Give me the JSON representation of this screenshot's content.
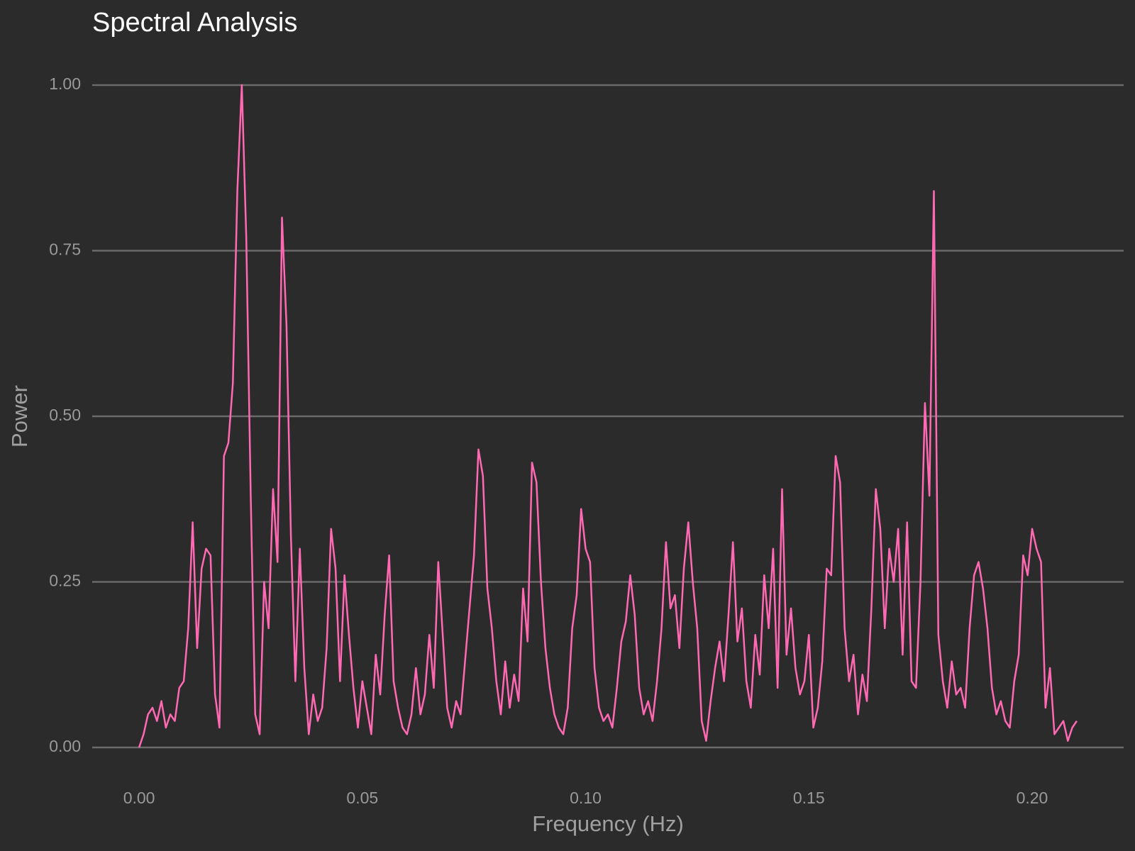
{
  "chart_data": {
    "type": "line",
    "title": "Spectral Analysis",
    "x_label": "Frequency (Hz)",
    "y_label": "Power",
    "color": "#ff69b4",
    "grid": true,
    "xlim": [
      -0.0105,
      0.2205
    ],
    "ylim": [
      -0.046,
      1.046
    ],
    "xticks": [
      {
        "value": 0,
        "label": "0.00"
      },
      {
        "value": 0.05,
        "label": "0.05"
      },
      {
        "value": 0.1,
        "label": "0.10"
      },
      {
        "value": 0.15,
        "label": "0.15"
      },
      {
        "value": 0.2,
        "label": "0.20"
      }
    ],
    "yticks": [
      {
        "value": 0,
        "label": "0.00"
      },
      {
        "value": 0.25,
        "label": "0.25"
      },
      {
        "value": 0.5,
        "label": "0.50"
      },
      {
        "value": 0.75,
        "label": "0.75"
      },
      {
        "value": 1,
        "label": "1.00"
      }
    ],
    "x": [
      0,
      0.001,
      0.002,
      0.003,
      0.004,
      0.005,
      0.006,
      0.007,
      0.008,
      0.009,
      0.01,
      0.011,
      0.012,
      0.013,
      0.014,
      0.015,
      0.016,
      0.017,
      0.018,
      0.019,
      0.02,
      0.021,
      0.022,
      0.023,
      0.024,
      0.025,
      0.026,
      0.027,
      0.028,
      0.029,
      0.03,
      0.031,
      0.032,
      0.033,
      0.034,
      0.035,
      0.036,
      0.037,
      0.038,
      0.039,
      0.04,
      0.041,
      0.042,
      0.043,
      0.044,
      0.045,
      0.046,
      0.047,
      0.048,
      0.049,
      0.05,
      0.051,
      0.052,
      0.053,
      0.054,
      0.055,
      0.056,
      0.057,
      0.058,
      0.059,
      0.06,
      0.061,
      0.062,
      0.063,
      0.064,
      0.065,
      0.066,
      0.067,
      0.068,
      0.069,
      0.07,
      0.071,
      0.072,
      0.073,
      0.074,
      0.075,
      0.076,
      0.077,
      0.078,
      0.079,
      0.08,
      0.081,
      0.082,
      0.083,
      0.084,
      0.085,
      0.086,
      0.087,
      0.088,
      0.089,
      0.09,
      0.091,
      0.092,
      0.093,
      0.094,
      0.095,
      0.096,
      0.097,
      0.098,
      0.099,
      0.1,
      0.101,
      0.102,
      0.103,
      0.104,
      0.105,
      0.106,
      0.107,
      0.108,
      0.109,
      0.11,
      0.111,
      0.112,
      0.113,
      0.114,
      0.115,
      0.116,
      0.117,
      0.118,
      0.119,
      0.12,
      0.121,
      0.122,
      0.123,
      0.124,
      0.125,
      0.126,
      0.127,
      0.128,
      0.129,
      0.13,
      0.131,
      0.132,
      0.133,
      0.134,
      0.135,
      0.136,
      0.137,
      0.138,
      0.139,
      0.14,
      0.141,
      0.142,
      0.143,
      0.144,
      0.145,
      0.146,
      0.147,
      0.148,
      0.149,
      0.15,
      0.151,
      0.152,
      0.153,
      0.154,
      0.155,
      0.156,
      0.157,
      0.158,
      0.159,
      0.16,
      0.161,
      0.162,
      0.163,
      0.164,
      0.165,
      0.166,
      0.167,
      0.168,
      0.169,
      0.17,
      0.171,
      0.172,
      0.173,
      0.174,
      0.175,
      0.176,
      0.177,
      0.178,
      0.179,
      0.18,
      0.181,
      0.182,
      0.183,
      0.184,
      0.185,
      0.186,
      0.187,
      0.188,
      0.189,
      0.19,
      0.191,
      0.192,
      0.193,
      0.194,
      0.195,
      0.196,
      0.197,
      0.198,
      0.199,
      0.2,
      0.201,
      0.202,
      0.203,
      0.204,
      0.205,
      0.206,
      0.207,
      0.208,
      0.209,
      0.21
    ],
    "values": [
      0,
      0.02,
      0.05,
      0.06,
      0.04,
      0.07,
      0.03,
      0.05,
      0.04,
      0.09,
      0.1,
      0.18,
      0.34,
      0.15,
      0.27,
      0.3,
      0.29,
      0.08,
      0.03,
      0.44,
      0.46,
      0.55,
      0.84,
      1,
      0.77,
      0.38,
      0.05,
      0.02,
      0.25,
      0.18,
      0.39,
      0.28,
      0.8,
      0.64,
      0.32,
      0.1,
      0.3,
      0.12,
      0.02,
      0.08,
      0.04,
      0.06,
      0.15,
      0.33,
      0.27,
      0.1,
      0.26,
      0.17,
      0.09,
      0.03,
      0.1,
      0.06,
      0.02,
      0.14,
      0.08,
      0.2,
      0.29,
      0.1,
      0.06,
      0.03,
      0.02,
      0.05,
      0.12,
      0.05,
      0.08,
      0.17,
      0.09,
      0.28,
      0.17,
      0.06,
      0.03,
      0.07,
      0.05,
      0.13,
      0.21,
      0.29,
      0.45,
      0.41,
      0.24,
      0.18,
      0.1,
      0.05,
      0.13,
      0.06,
      0.11,
      0.07,
      0.24,
      0.16,
      0.43,
      0.4,
      0.25,
      0.15,
      0.09,
      0.05,
      0.03,
      0.02,
      0.06,
      0.18,
      0.23,
      0.36,
      0.3,
      0.28,
      0.12,
      0.06,
      0.04,
      0.05,
      0.03,
      0.09,
      0.16,
      0.19,
      0.26,
      0.2,
      0.09,
      0.05,
      0.07,
      0.04,
      0.1,
      0.18,
      0.31,
      0.21,
      0.23,
      0.15,
      0.27,
      0.34,
      0.25,
      0.18,
      0.04,
      0.01,
      0.07,
      0.12,
      0.16,
      0.1,
      0.2,
      0.31,
      0.16,
      0.21,
      0.1,
      0.06,
      0.17,
      0.11,
      0.26,
      0.18,
      0.3,
      0.09,
      0.39,
      0.14,
      0.21,
      0.12,
      0.08,
      0.1,
      0.17,
      0.03,
      0.06,
      0.13,
      0.27,
      0.26,
      0.44,
      0.4,
      0.18,
      0.1,
      0.14,
      0.05,
      0.11,
      0.07,
      0.21,
      0.39,
      0.33,
      0.18,
      0.3,
      0.25,
      0.33,
      0.14,
      0.34,
      0.1,
      0.09,
      0.25,
      0.52,
      0.38,
      0.84,
      0.17,
      0.1,
      0.06,
      0.13,
      0.08,
      0.09,
      0.06,
      0.18,
      0.26,
      0.28,
      0.24,
      0.18,
      0.09,
      0.05,
      0.07,
      0.04,
      0.03,
      0.1,
      0.14,
      0.29,
      0.26,
      0.33,
      0.3,
      0.28,
      0.06,
      0.12,
      0.02,
      0.03,
      0.04,
      0.01,
      0.03,
      0.04
    ]
  }
}
